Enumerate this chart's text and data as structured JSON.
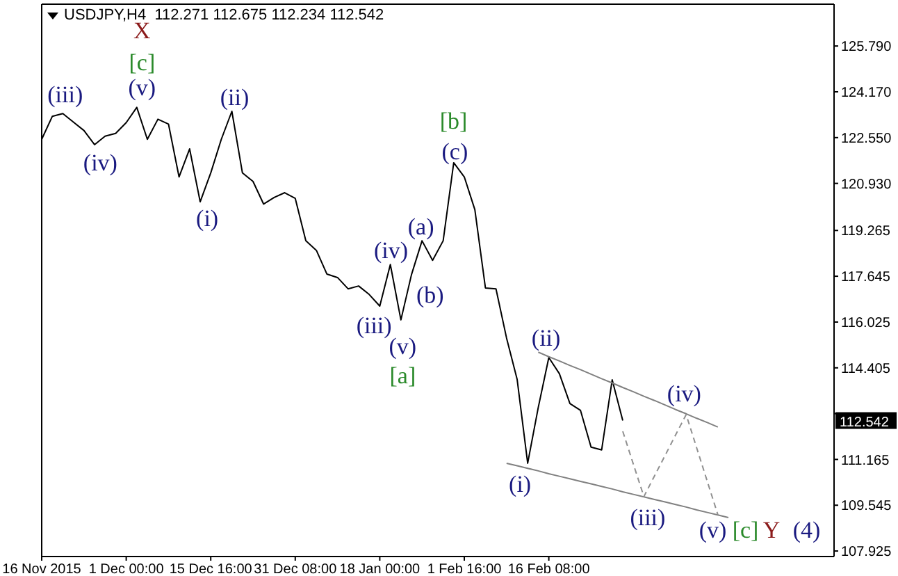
{
  "chart_data": {
    "type": "line",
    "title": "USDJPY,H4  112.271 112.675 112.234 112.542",
    "marker": "none",
    "categories": [
      "16 Nov 2015",
      null,
      null,
      null,
      null,
      null,
      null,
      null,
      "1 Dec 00:00",
      null,
      null,
      null,
      null,
      null,
      null,
      null,
      "15 Dec 16:00",
      null,
      null,
      null,
      null,
      null,
      null,
      null,
      "31 Dec 08:00",
      null,
      null,
      null,
      null,
      null,
      null,
      null,
      "18 Jan 00:00",
      null,
      null,
      null,
      null,
      null,
      null,
      null,
      "1 Feb 16:00",
      null,
      null,
      null,
      null,
      null,
      null,
      null,
      "16 Feb 08:00",
      null,
      null,
      null,
      null,
      null,
      null,
      null,
      null,
      null,
      null,
      null,
      null,
      null,
      null,
      null,
      null,
      null,
      null,
      null,
      null,
      null,
      null,
      null,
      null,
      null,
      null,
      null
    ],
    "ylim": [
      107.73,
      127.27
    ],
    "yticks": [
      {
        "value": 107.925,
        "label": "107.925"
      },
      {
        "value": 109.545,
        "label": "109.545"
      },
      {
        "value": 111.165,
        "label": "111.165"
      },
      {
        "value": 112.785,
        "label": null
      },
      {
        "value": 114.405,
        "label": "114.405"
      },
      {
        "value": 116.025,
        "label": "116.025"
      },
      {
        "value": 117.645,
        "label": "117.645"
      },
      {
        "value": 119.265,
        "label": "119.265"
      },
      {
        "value": 120.93,
        "label": "120.930"
      },
      {
        "value": 122.55,
        "label": "122.550"
      },
      {
        "value": 124.17,
        "label": "124.170"
      },
      {
        "value": 125.79,
        "label": "125.790"
      }
    ],
    "series": [
      {
        "color": "#000000",
        "line_style": "solid",
        "values": [
          122.49,
          123.3,
          123.4,
          123.1,
          122.8,
          122.3,
          122.6,
          122.7,
          123.08,
          123.62,
          122.49,
          123.2,
          123.03,
          121.16,
          122.15,
          120.28,
          121.3,
          122.49,
          123.48,
          121.3,
          121.0,
          120.2,
          120.43,
          120.6,
          120.4,
          118.9,
          118.56,
          117.72,
          117.6,
          117.2,
          117.3,
          117.0,
          116.59,
          118.06,
          116.1,
          117.7,
          118.9,
          118.21,
          118.9,
          121.66,
          121.16,
          120.0,
          117.23,
          117.2,
          115.46,
          114.0,
          111.03,
          113.0,
          114.77,
          114.2,
          113.14,
          112.9,
          111.6,
          111.5,
          113.98,
          112.54,
          null,
          null,
          null,
          null,
          null,
          null,
          null,
          null,
          null,
          null,
          null,
          null,
          null,
          null,
          null,
          null,
          null,
          null,
          null,
          null
        ]
      },
      {
        "color": "#808080",
        "line_style": "solid",
        "values": [
          null,
          null,
          null,
          null,
          null,
          null,
          null,
          null,
          null,
          null,
          null,
          null,
          null,
          null,
          null,
          null,
          null,
          null,
          null,
          null,
          null,
          null,
          null,
          null,
          null,
          null,
          null,
          null,
          null,
          null,
          null,
          null,
          null,
          null,
          null,
          null,
          null,
          null,
          null,
          null,
          null,
          null,
          null,
          null,
          null,
          null,
          null,
          114.96,
          114.8,
          114.65,
          114.49,
          114.34,
          114.18,
          114.02,
          113.87,
          113.71,
          113.56,
          113.4,
          113.25,
          113.09,
          112.93,
          112.78,
          112.62,
          112.47,
          112.31,
          null,
          null,
          null,
          null,
          null,
          null,
          null,
          null,
          null,
          null,
          null
        ]
      },
      {
        "color": "#808080",
        "line_style": "solid",
        "values": [
          null,
          null,
          null,
          null,
          null,
          null,
          null,
          null,
          null,
          null,
          null,
          null,
          null,
          null,
          null,
          null,
          null,
          null,
          null,
          null,
          null,
          null,
          null,
          null,
          null,
          null,
          null,
          null,
          null,
          null,
          null,
          null,
          null,
          null,
          null,
          null,
          null,
          null,
          null,
          null,
          null,
          null,
          null,
          null,
          111.03,
          110.94,
          110.85,
          110.76,
          110.66,
          110.57,
          110.48,
          110.39,
          110.3,
          110.21,
          110.12,
          110.02,
          109.93,
          109.84,
          109.75,
          109.66,
          109.57,
          109.48,
          109.38,
          109.29,
          109.2,
          109.11,
          null,
          null,
          null,
          null,
          null,
          null,
          null,
          null,
          null,
          null
        ]
      },
      {
        "color": "#909090",
        "line_style": "dashed",
        "values": [
          null,
          null,
          null,
          null,
          null,
          null,
          null,
          null,
          null,
          null,
          null,
          null,
          null,
          null,
          null,
          null,
          null,
          null,
          null,
          null,
          null,
          null,
          null,
          null,
          null,
          null,
          null,
          null,
          null,
          null,
          null,
          null,
          null,
          null,
          null,
          null,
          null,
          null,
          null,
          null,
          null,
          null,
          null,
          null,
          null,
          null,
          null,
          null,
          null,
          null,
          null,
          null,
          null,
          null,
          null,
          112.16,
          111.0,
          109.85,
          110.58,
          111.3,
          112.03,
          112.75,
          111.57,
          110.39,
          109.21,
          null,
          null,
          null,
          null,
          null,
          null,
          null,
          null,
          null,
          null,
          null
        ]
      }
    ],
    "annotations": [
      "X",
      "[c]",
      "(v)",
      "(iii)",
      "(iv)",
      "(ii)",
      "(i)",
      "[b]",
      "(c)",
      "(a)",
      "(iv)",
      "(b)",
      "(iii)",
      "(v)",
      "[a]",
      "(ii)",
      "(i)",
      "(iii)",
      "(iv)",
      "(v)",
      "[c]",
      "Y",
      "(4)",
      "112.542"
    ]
  }
}
